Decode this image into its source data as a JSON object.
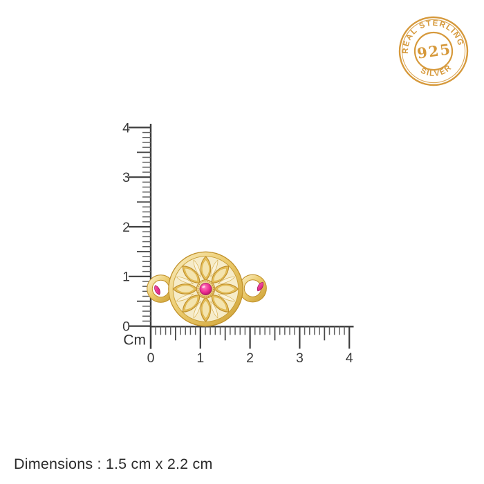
{
  "badge": {
    "top_text": "REAL STERLING",
    "center_text": "925",
    "bottom_text": "SILVER",
    "color": "#d6993b"
  },
  "rulers": {
    "unit_label": "Cm",
    "vertical_labels": [
      "0",
      "1",
      "2",
      "3",
      "4"
    ],
    "horizontal_labels": [
      "0",
      "1",
      "2",
      "3",
      "4"
    ]
  },
  "product": {
    "description": "gold flower medallion connector with pink gemstones",
    "gold_color": "#e8c35e",
    "gem_color": "#e0218a"
  },
  "footer": {
    "dimensions_text": "Dimensions : 1.5 cm x 2.2 cm"
  }
}
